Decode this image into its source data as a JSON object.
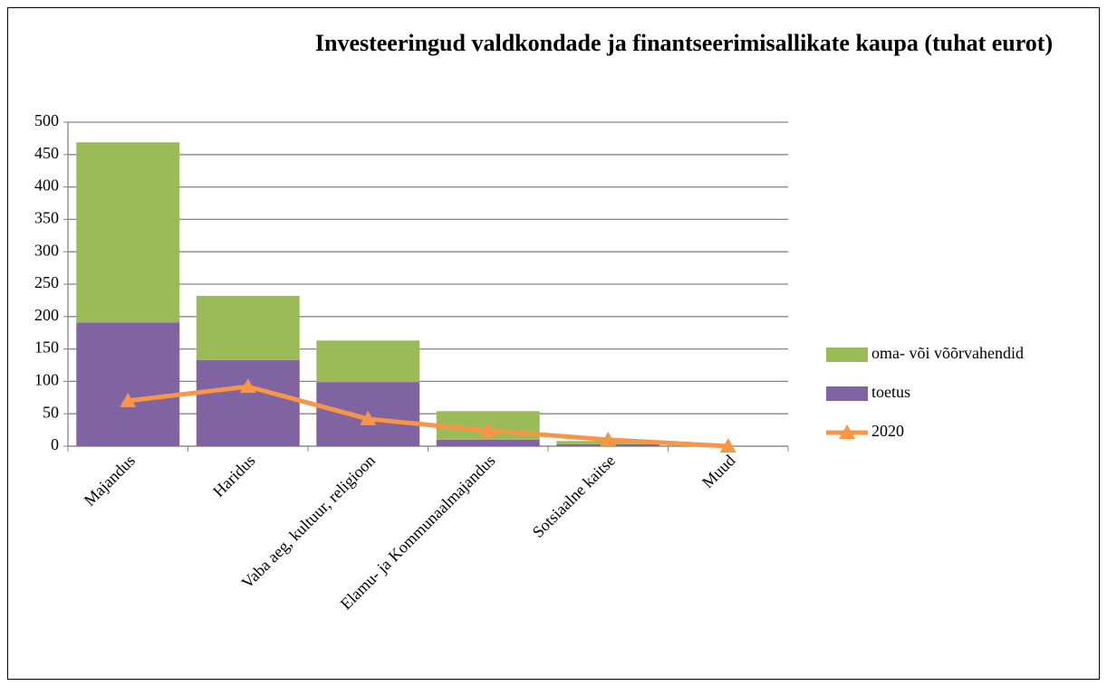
{
  "chart_data": {
    "type": "bar",
    "stacked": true,
    "title": "Investeeringud valdkondade ja finantseerimisallikate kaupa (tuhat eurot)",
    "categories": [
      "Majandus",
      "Haridus",
      "Vaba aeg, kultuur, religioon",
      "Elamu- ja Kommunaalmajandus",
      "Sotsiaalne kaitse",
      "Muud"
    ],
    "series": [
      {
        "name": "toetus",
        "type": "bar",
        "color": "#8064a2",
        "values": [
          191,
          133,
          99,
          10,
          3,
          0
        ]
      },
      {
        "name": "oma- või võõrvahendid",
        "type": "bar",
        "color": "#9bbb59",
        "values": [
          278,
          99,
          64,
          44,
          5,
          0
        ]
      },
      {
        "name": "2020",
        "type": "line",
        "color": "#f79646",
        "values": [
          70,
          92,
          42,
          24,
          10,
          0
        ]
      }
    ],
    "ylim": [
      0,
      500
    ],
    "yticks": [
      0,
      50,
      100,
      150,
      200,
      250,
      300,
      350,
      400,
      450,
      500
    ],
    "grid": true,
    "legend": "right"
  }
}
